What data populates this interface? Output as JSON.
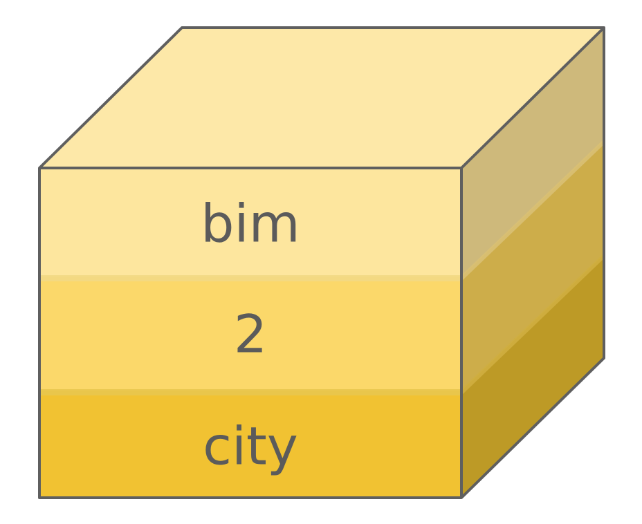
{
  "diagram": {
    "type": "stacked-cube",
    "layers": [
      {
        "label": "bim",
        "front_color": "#fde69e",
        "side_color": "#ceb97b"
      },
      {
        "label": "2",
        "front_color": "#fbd86a",
        "side_color": "#cdad4a"
      },
      {
        "label": "city",
        "front_color": "#f1c232",
        "side_color": "#bd9a26"
      }
    ],
    "top_color": "#fde8a8",
    "stroke_color": "#5f5f5f",
    "text_color": "#5b5b5b"
  }
}
